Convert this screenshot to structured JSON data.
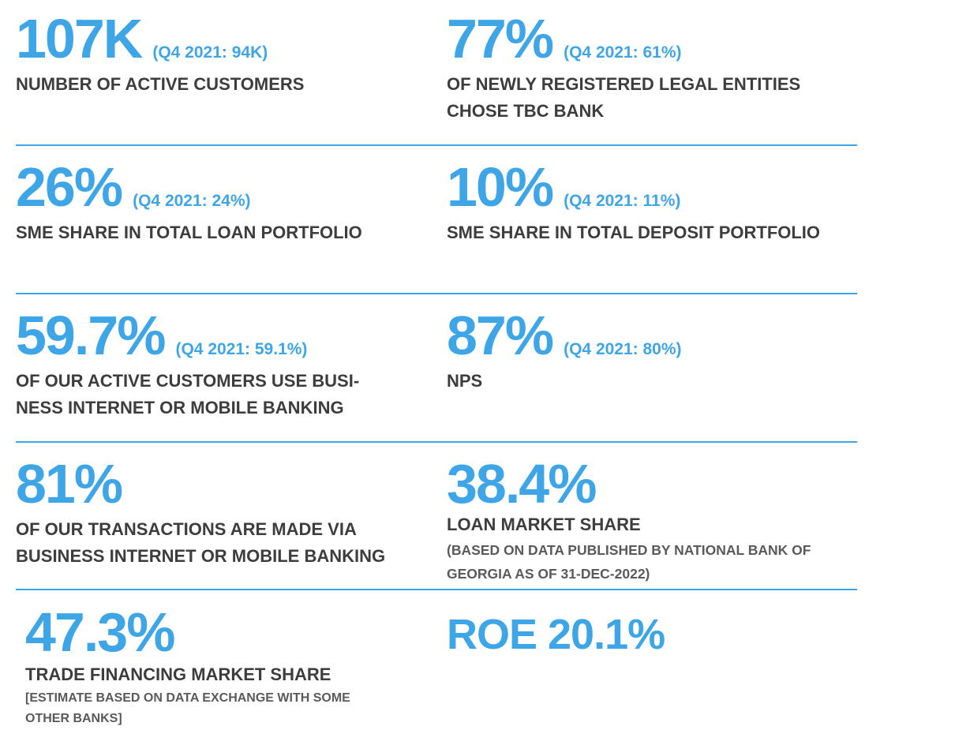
{
  "colors": {
    "accent": "#3ea6e6",
    "label": "#3d3d3d",
    "note": "#5a5a5a"
  },
  "stats": [
    {
      "value": "107K",
      "comparison": "(Q4 2021: 94K)",
      "label_lines": [
        "NUMBER OF ACTIVE CUSTOMERS"
      ]
    },
    {
      "value": "77%",
      "comparison": "(Q4 2021: 61%)",
      "label_lines": [
        "OF NEWLY REGISTERED LEGAL ENTITIES",
        "CHOSE TBC BANK"
      ]
    },
    {
      "value": "26%",
      "comparison": "(Q4 2021: 24%)",
      "label_lines": [
        "SME SHARE IN TOTAL LOAN PORTFOLIO"
      ]
    },
    {
      "value": "10%",
      "comparison": "(Q4 2021: 11%)",
      "label_lines": [
        "SME SHARE IN TOTAL DEPOSIT PORTFOLIO"
      ]
    },
    {
      "value": "59.7%",
      "comparison": "(Q4 2021: 59.1%)",
      "label_lines": [
        "OF OUR ACTIVE CUSTOMERS USE BUSI-",
        "NESS INTERNET OR MOBILE BANKING"
      ]
    },
    {
      "value": "87%",
      "comparison": "(Q4 2021: 80%)",
      "label_lines": [
        "NPS"
      ]
    },
    {
      "value": "81%",
      "label_lines": [
        "OF OUR TRANSACTIONS ARE MADE VIA",
        "BUSINESS INTERNET OR MOBILE BANKING"
      ]
    },
    {
      "value": "38.4%",
      "label_lines": [
        "LOAN MARKET SHARE"
      ],
      "note_lines": [
        "(BASED ON DATA PUBLISHED BY NATIONAL BANK OF",
        "GEORGIA AS OF 31-DEC-2022)"
      ]
    },
    {
      "value": "47.3%",
      "label_lines": [
        "TRADE FINANCING MARKET SHARE"
      ],
      "note_lines": [
        "[ESTIMATE BASED ON DATA EXCHANGE WITH SOME",
        "OTHER BANKS]"
      ]
    },
    {
      "value": "ROE 20.1%"
    }
  ]
}
